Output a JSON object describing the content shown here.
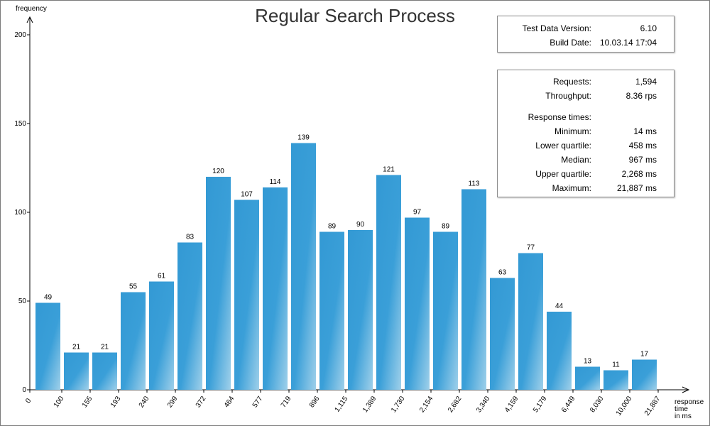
{
  "chart_data": {
    "type": "bar",
    "title": "Regular Search Process",
    "ylabel": "frequency",
    "xlabel_lines": [
      "response",
      "time",
      "in ms"
    ],
    "ylim": [
      0,
      200
    ],
    "yticks": [
      0,
      50,
      100,
      150,
      200
    ],
    "x_origin_label": "0",
    "categories": [
      "100",
      "155",
      "193",
      "240",
      "299",
      "372",
      "464",
      "577",
      "719",
      "896",
      "1,115",
      "1,389",
      "1,730",
      "2,154",
      "2,682",
      "3,340",
      "4,159",
      "5,179",
      "6,449",
      "8,030",
      "10,000",
      "21,887"
    ],
    "values": [
      49,
      21,
      21,
      55,
      61,
      83,
      120,
      107,
      114,
      139,
      89,
      90,
      121,
      97,
      89,
      113,
      63,
      77,
      44,
      13,
      11,
      17
    ],
    "grid": false,
    "bar_color": "#3399d4",
    "bar_color_light": "#9fd0ea"
  },
  "version_box": {
    "rows": [
      {
        "label": "Test Data Version:",
        "value": "6.10"
      },
      {
        "label": "Build Date:",
        "value": "10.03.14 17:04"
      }
    ]
  },
  "stats_box": {
    "rows": [
      {
        "label": "Requests:",
        "value": "1,594"
      },
      {
        "label": "Throughput:",
        "value": "8.36 rps"
      },
      {
        "label": "Response times:",
        "value": ""
      },
      {
        "label": "Minimum:",
        "value": "14 ms"
      },
      {
        "label": "Lower quartile:",
        "value": "458 ms"
      },
      {
        "label": "Median:",
        "value": "967 ms"
      },
      {
        "label": "Upper quartile:",
        "value": "2,268 ms"
      },
      {
        "label": "Maximum:",
        "value": "21,887 ms"
      }
    ]
  }
}
